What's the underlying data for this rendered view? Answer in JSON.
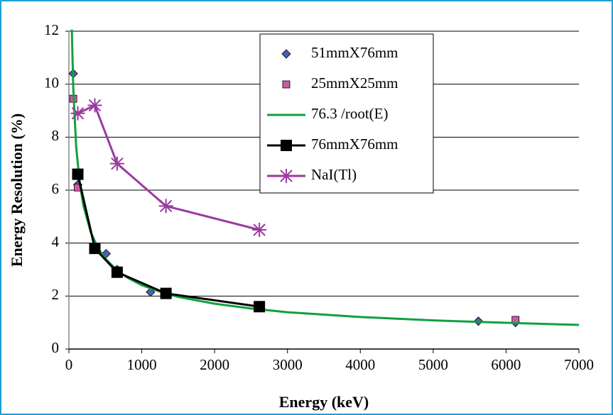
{
  "chart_data": {
    "type": "line",
    "x_label": "Energy (keV)",
    "y_label": "Energy Resolution (%)",
    "xlim": [
      0,
      7000
    ],
    "xticks": [
      0,
      1000,
      2000,
      3000,
      4000,
      5000,
      6000,
      7000
    ],
    "ylim": [
      0,
      12
    ],
    "yticks": [
      0,
      2,
      4,
      6,
      8,
      10,
      12
    ],
    "grid": true,
    "series": [
      {
        "name": "51mmX76mm",
        "color": "#4a5fb0",
        "marker": "diamond",
        "line": false,
        "x": [
          60,
          122,
          511,
          662,
          1120,
          5620,
          6130
        ],
        "values": [
          10.4,
          6.2,
          3.6,
          3.0,
          2.15,
          1.05,
          1.0
        ]
      },
      {
        "name": "25mmX25mm",
        "color": "#d058a8",
        "marker": "square-small",
        "line": false,
        "x": [
          60,
          122,
          6130
        ],
        "values": [
          9.45,
          6.1,
          1.1
        ]
      },
      {
        "name": "76.3 /root(E)",
        "color": "#10a040",
        "marker": "none",
        "line": true,
        "x": [
          40,
          60,
          100,
          150,
          200,
          300,
          400,
          500,
          662,
          800,
          1000,
          1332,
          1500,
          2000,
          2500,
          3000,
          4000,
          5000,
          6000,
          7000
        ],
        "values": [
          12.06,
          9.85,
          7.63,
          6.23,
          5.4,
          4.41,
          3.81,
          3.41,
          2.97,
          2.7,
          2.41,
          2.09,
          1.97,
          1.71,
          1.53,
          1.39,
          1.21,
          1.08,
          0.99,
          0.91
        ]
      },
      {
        "name": "76mmX76mm",
        "color": "#000000",
        "marker": "square",
        "line": true,
        "x": [
          122,
          356,
          662,
          1332,
          2614
        ],
        "values": [
          6.6,
          3.8,
          2.9,
          2.1,
          1.6
        ]
      },
      {
        "name": "NaI(Tl)",
        "color": "#9a3aa0",
        "marker": "star",
        "line": true,
        "x": [
          122,
          356,
          662,
          1332,
          2614
        ],
        "values": [
          8.9,
          9.2,
          7.0,
          5.4,
          4.5
        ]
      }
    ]
  }
}
